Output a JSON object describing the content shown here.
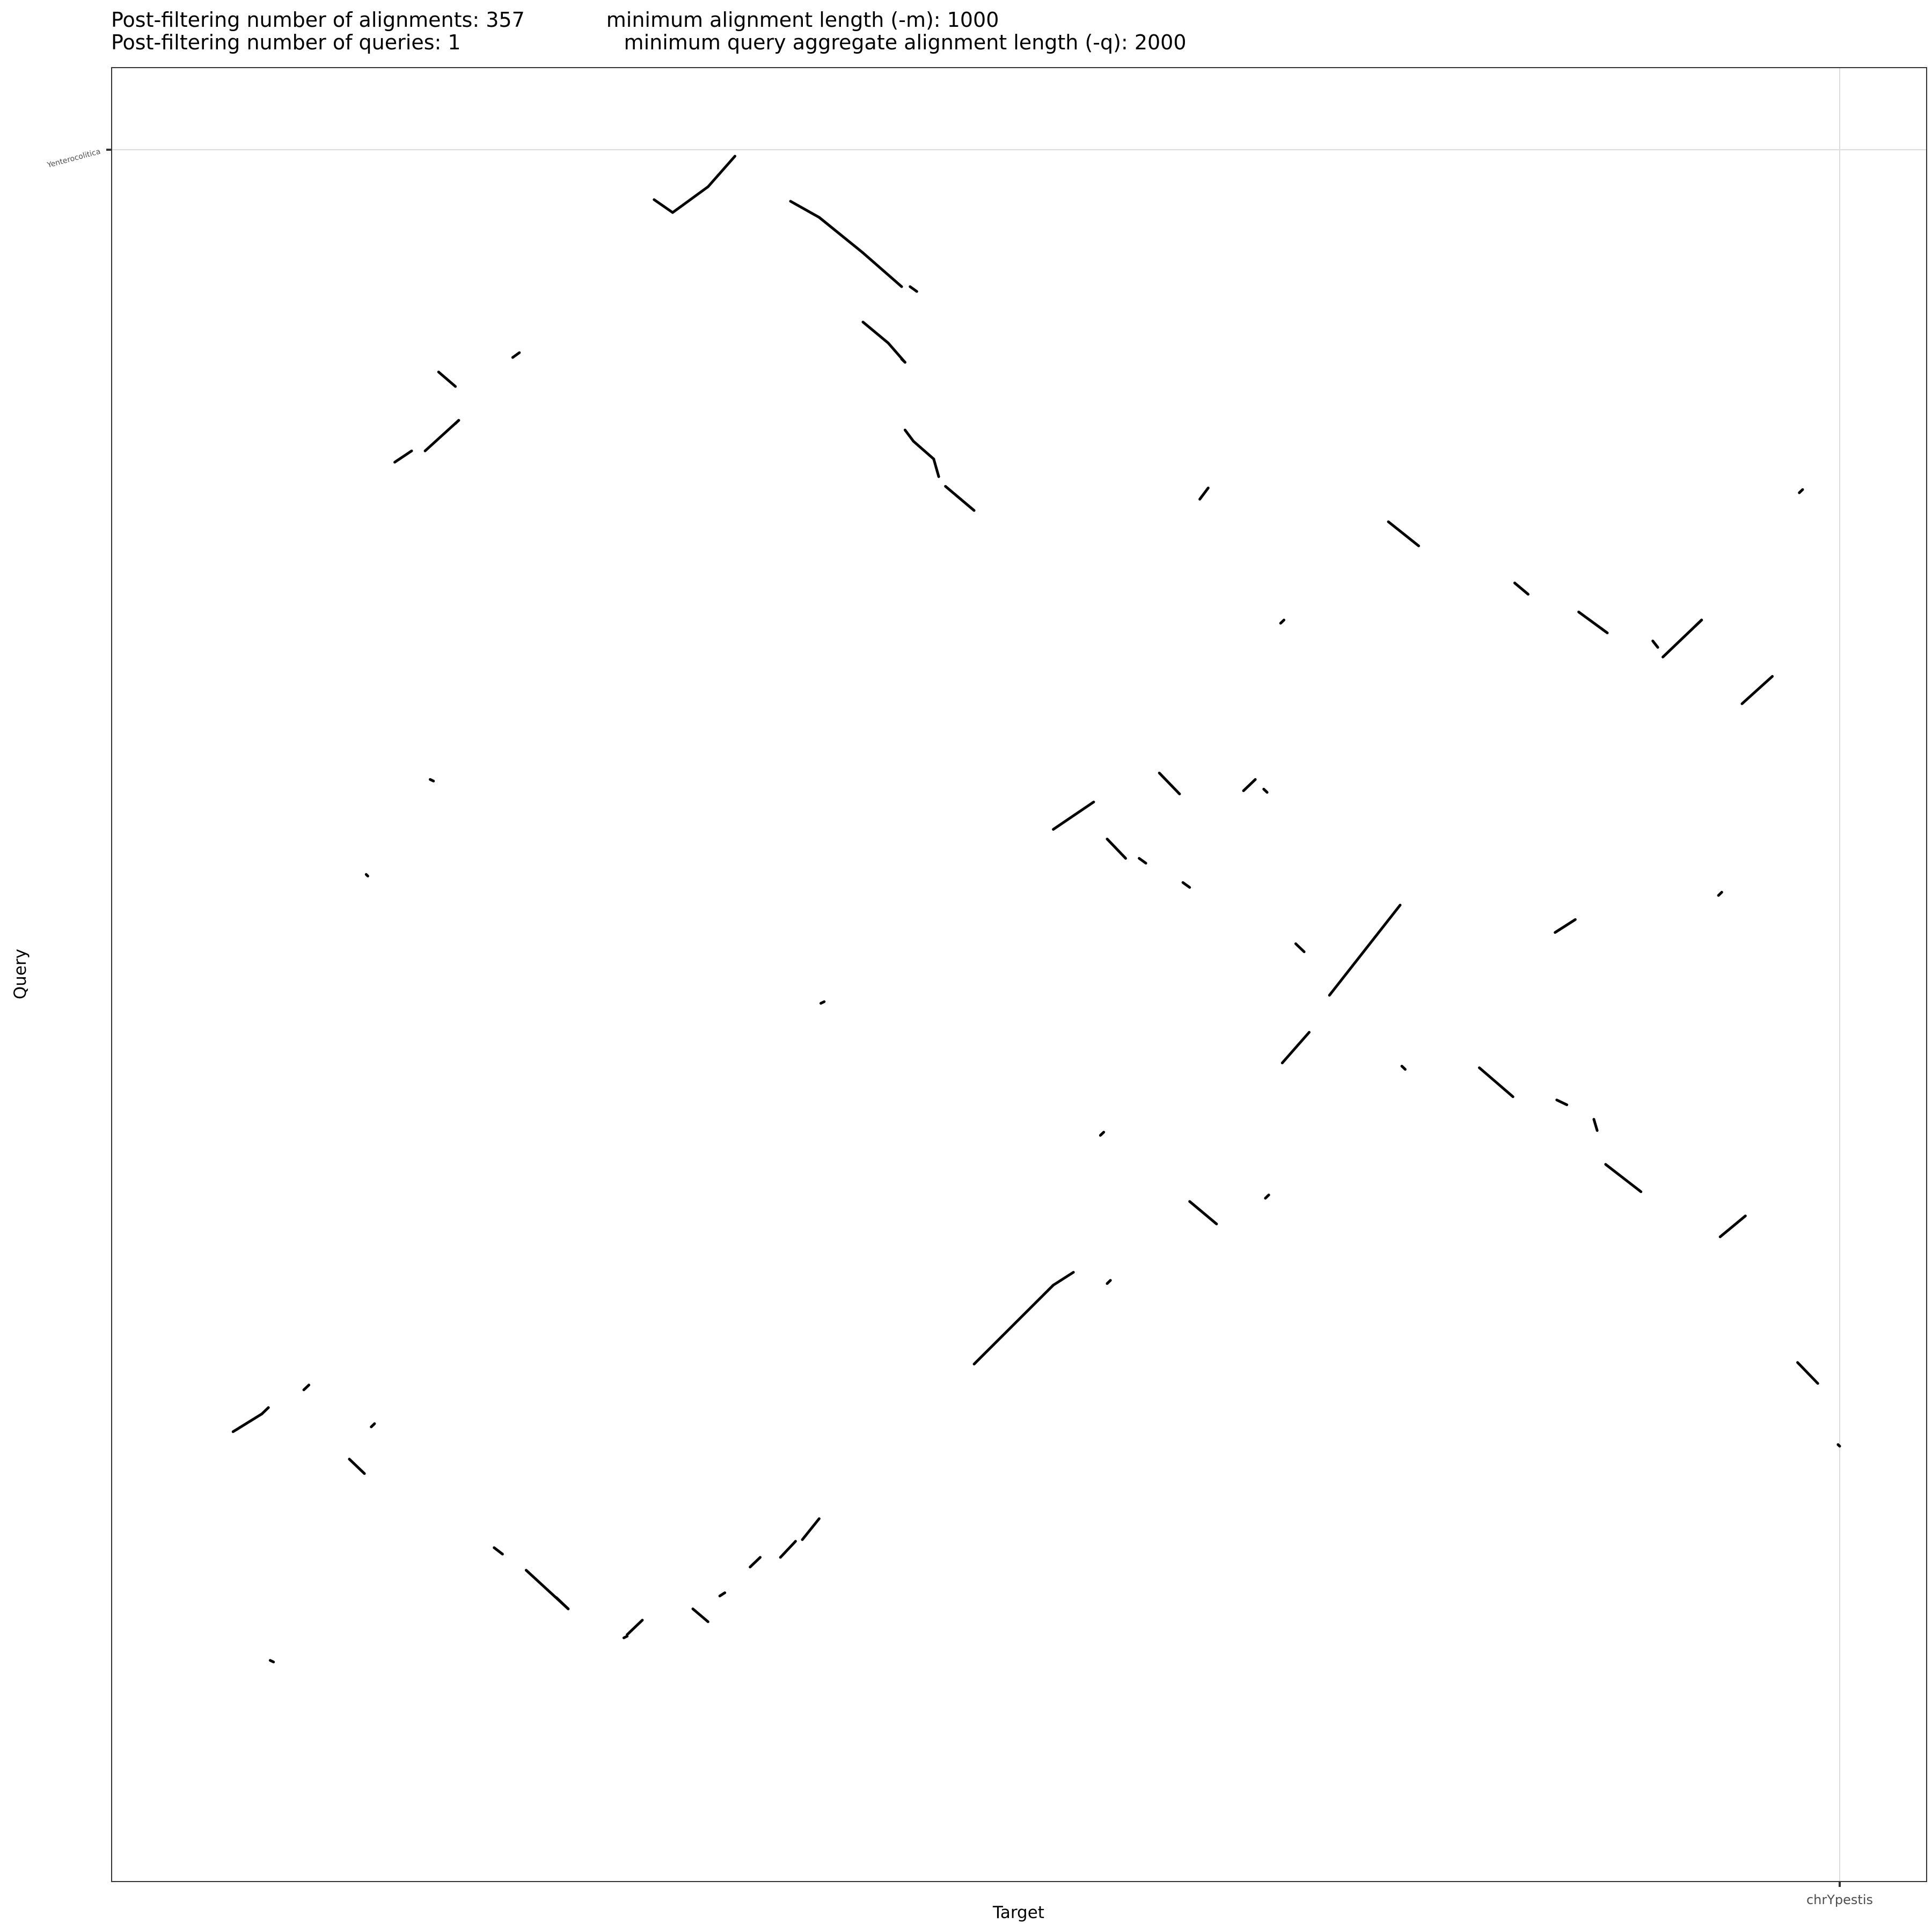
{
  "chart_data": {
    "type": "scatter",
    "title": "Post-filtering number of alignments: 357    minimum alignment length (-m): 1000",
    "subtitle": "Post-filtering number of queries: 1        minimum query aggregate alignment length (-q): 2000",
    "xlabel": "Target",
    "ylabel": "Query",
    "x_tick_labels": [
      "chrYpestis"
    ],
    "y_tick_labels": [
      "Yenterocolitica"
    ],
    "xlim": [
      0,
      1
    ],
    "ylim": [
      0,
      1
    ],
    "grid": true,
    "legend": "none",
    "colors": {
      "segment": "#000000",
      "grid": "#dcdcdc",
      "frame": "#333333",
      "tick_text": "#4d4d4d"
    },
    "segments": [
      [
        0.296,
        0.969,
        0.307,
        0.961
      ],
      [
        0.307,
        0.961,
        0.328,
        0.977
      ],
      [
        0.328,
        0.977,
        0.344,
        0.996
      ],
      [
        0.377,
        0.968,
        0.394,
        0.958
      ],
      [
        0.394,
        0.958,
        0.42,
        0.936
      ],
      [
        0.42,
        0.936,
        0.443,
        0.915
      ],
      [
        0.448,
        0.915,
        0.452,
        0.912
      ],
      [
        0.168,
        0.862,
        0.178,
        0.853
      ],
      [
        0.212,
        0.871,
        0.216,
        0.874
      ],
      [
        0.142,
        0.806,
        0.152,
        0.813
      ],
      [
        0.16,
        0.813,
        0.18,
        0.832
      ],
      [
        0.18,
        0.832,
        0.178,
        0.83
      ],
      [
        0.42,
        0.893,
        0.435,
        0.88
      ],
      [
        0.435,
        0.88,
        0.445,
        0.868
      ],
      [
        0.445,
        0.868,
        0.443,
        0.87
      ],
      [
        0.445,
        0.826,
        0.45,
        0.819
      ],
      [
        0.45,
        0.819,
        0.462,
        0.808
      ],
      [
        0.462,
        0.808,
        0.465,
        0.797
      ],
      [
        0.469,
        0.791,
        0.486,
        0.776
      ],
      [
        0.62,
        0.783,
        0.625,
        0.79
      ],
      [
        0.668,
        0.706,
        0.67,
        0.708
      ],
      [
        0.732,
        0.769,
        0.75,
        0.754
      ],
      [
        0.807,
        0.731,
        0.815,
        0.724
      ],
      [
        0.845,
        0.713,
        0.862,
        0.7
      ],
      [
        0.889,
        0.695,
        0.892,
        0.691
      ],
      [
        0.895,
        0.685,
        0.918,
        0.708
      ],
      [
        0.918,
        0.708,
        0.914,
        0.704
      ],
      [
        0.942,
        0.656,
        0.96,
        0.673
      ],
      [
        0.976,
        0.787,
        0.978,
        0.789
      ],
      [
        0.596,
        0.613,
        0.608,
        0.6
      ],
      [
        0.646,
        0.602,
        0.653,
        0.609
      ],
      [
        0.658,
        0.603,
        0.66,
        0.601
      ],
      [
        0.533,
        0.578,
        0.557,
        0.595
      ],
      [
        0.565,
        0.572,
        0.576,
        0.56
      ],
      [
        0.584,
        0.56,
        0.588,
        0.557
      ],
      [
        0.61,
        0.545,
        0.614,
        0.542
      ],
      [
        0.163,
        0.609,
        0.165,
        0.608
      ],
      [
        0.125,
        0.55,
        0.126,
        0.549
      ],
      [
        0.395,
        0.47,
        0.397,
        0.471
      ],
      [
        0.677,
        0.507,
        0.682,
        0.502
      ],
      [
        0.697,
        0.475,
        0.739,
        0.531
      ],
      [
        0.669,
        0.433,
        0.685,
        0.452
      ],
      [
        0.831,
        0.514,
        0.843,
        0.522
      ],
      [
        0.928,
        0.537,
        0.93,
        0.539
      ],
      [
        0.74,
        0.431,
        0.742,
        0.429
      ],
      [
        0.786,
        0.43,
        0.806,
        0.412
      ],
      [
        0.832,
        0.41,
        0.838,
        0.407
      ],
      [
        0.854,
        0.398,
        0.856,
        0.391
      ],
      [
        0.861,
        0.37,
        0.882,
        0.353
      ],
      [
        0.561,
        0.388,
        0.563,
        0.39
      ],
      [
        0.614,
        0.347,
        0.63,
        0.333
      ],
      [
        0.659,
        0.349,
        0.661,
        0.351
      ],
      [
        0.565,
        0.296,
        0.567,
        0.298
      ],
      [
        0.486,
        0.246,
        0.533,
        0.295
      ],
      [
        0.533,
        0.295,
        0.545,
        0.303
      ],
      [
        0.929,
        0.325,
        0.944,
        0.338
      ],
      [
        0.975,
        0.247,
        0.987,
        0.234
      ],
      [
        0.999,
        0.196,
        1.0,
        0.195
      ],
      [
        0.046,
        0.204,
        0.063,
        0.215
      ],
      [
        0.063,
        0.215,
        0.067,
        0.219
      ],
      [
        0.088,
        0.23,
        0.091,
        0.233
      ],
      [
        0.115,
        0.187,
        0.124,
        0.178
      ],
      [
        0.128,
        0.207,
        0.13,
        0.209
      ],
      [
        0.201,
        0.132,
        0.206,
        0.128
      ],
      [
        0.22,
        0.118,
        0.245,
        0.094
      ],
      [
        0.245,
        0.094,
        0.238,
        0.101
      ],
      [
        0.068,
        0.062,
        0.07,
        0.061
      ],
      [
        0.28,
        0.078,
        0.289,
        0.087
      ],
      [
        0.319,
        0.094,
        0.328,
        0.086
      ],
      [
        0.353,
        0.12,
        0.359,
        0.126
      ],
      [
        0.371,
        0.126,
        0.38,
        0.136
      ],
      [
        0.384,
        0.137,
        0.394,
        0.15
      ],
      [
        0.335,
        0.102,
        0.338,
        0.104
      ],
      [
        0.28,
        0.077,
        0.278,
        0.076
      ]
    ]
  }
}
